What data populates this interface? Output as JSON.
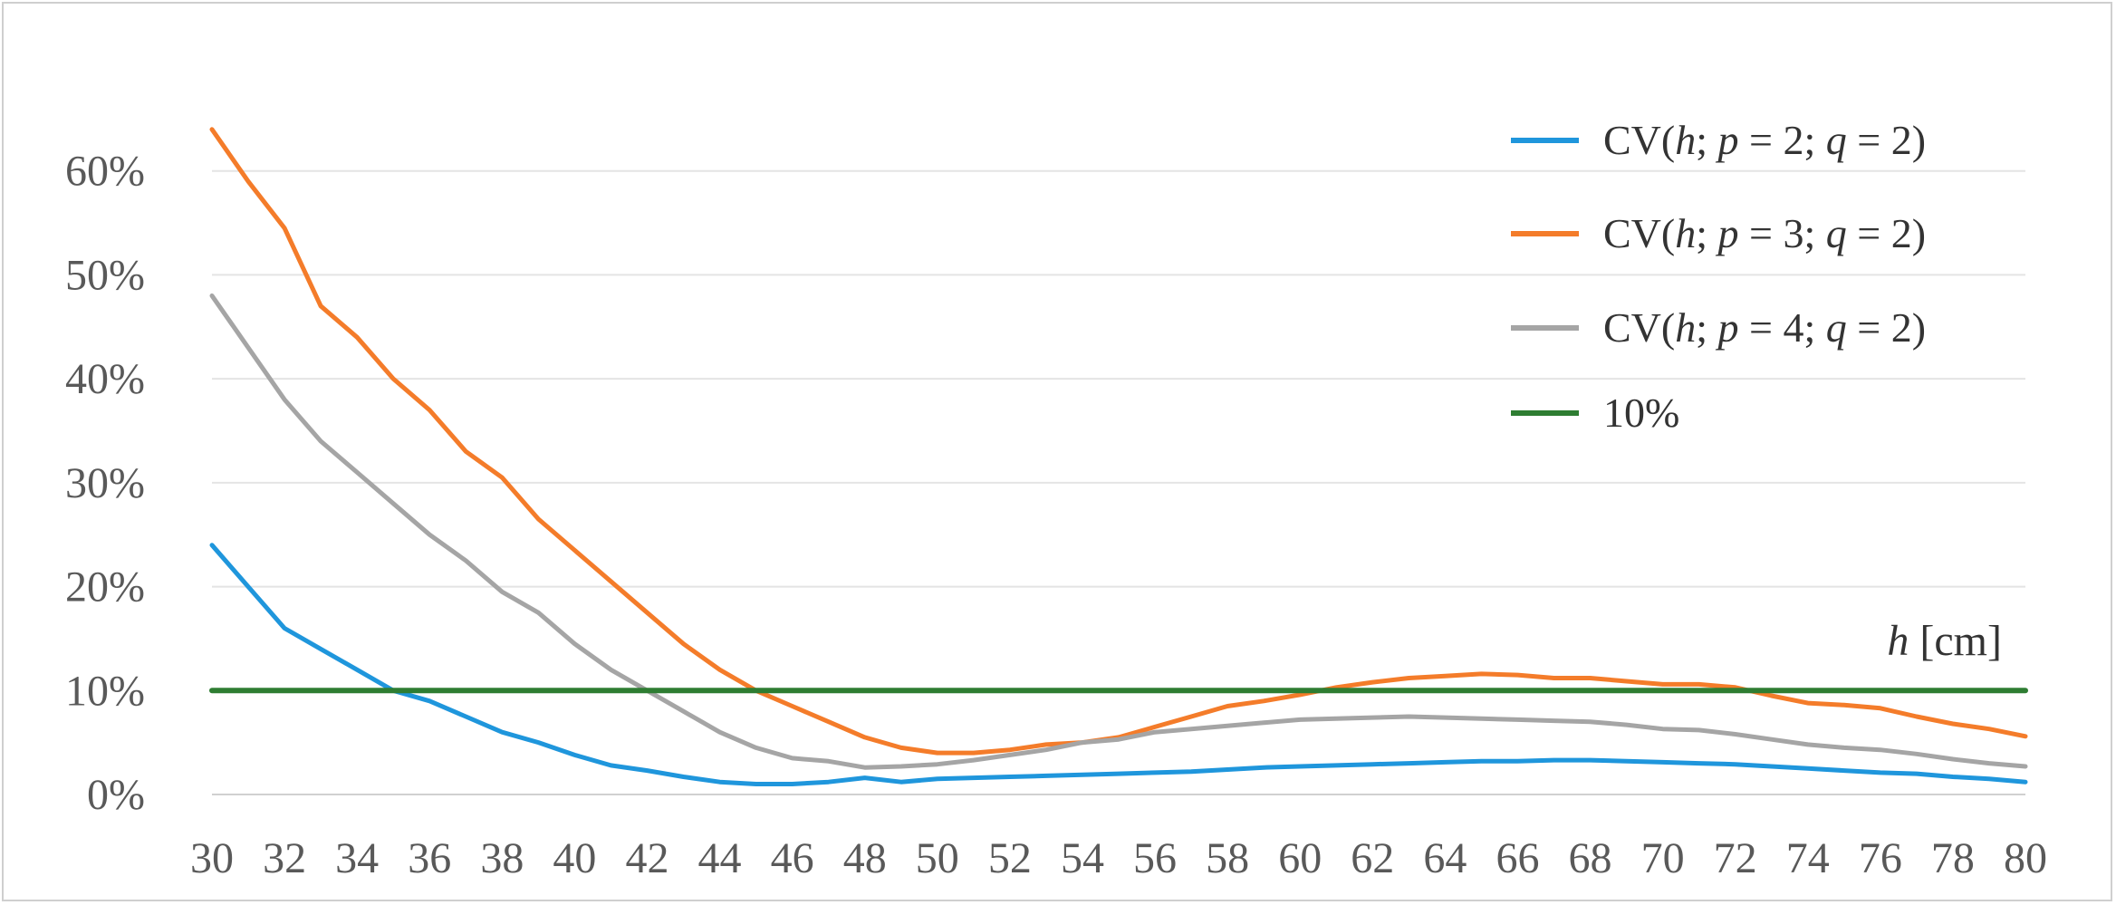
{
  "chart_data": {
    "type": "line",
    "title": "",
    "xlabel_italic": "h",
    "xlabel_unit": " [cm]",
    "ylabel": "",
    "x": [
      30,
      31,
      32,
      33,
      34,
      35,
      36,
      37,
      38,
      39,
      40,
      41,
      42,
      43,
      44,
      45,
      46,
      47,
      48,
      49,
      50,
      51,
      52,
      53,
      54,
      55,
      56,
      57,
      58,
      59,
      60,
      61,
      62,
      63,
      64,
      65,
      66,
      67,
      68,
      69,
      70,
      71,
      72,
      73,
      74,
      75,
      76,
      77,
      78,
      79,
      80
    ],
    "x_tick_labels": [
      "30",
      "32",
      "34",
      "36",
      "38",
      "40",
      "42",
      "44",
      "46",
      "48",
      "50",
      "52",
      "54",
      "56",
      "58",
      "60",
      "62",
      "64",
      "66",
      "68",
      "70",
      "72",
      "74",
      "76",
      "78",
      "80"
    ],
    "y_tick_labels": [
      "0%",
      "10%",
      "20%",
      "30%",
      "40%",
      "50%",
      "60%"
    ],
    "ylim": [
      0,
      0.7
    ],
    "grid": true,
    "legend_position": "top-right",
    "series": [
      {
        "name_parts": [
          "CV(",
          "h",
          "; ",
          "p",
          " = 2; ",
          "q",
          " = 2)"
        ],
        "color": "#1f96dc",
        "values": [
          0.24,
          0.2,
          0.16,
          0.14,
          0.12,
          0.1,
          0.09,
          0.075,
          0.06,
          0.05,
          0.038,
          0.028,
          0.023,
          0.017,
          0.012,
          0.01,
          0.01,
          0.012,
          0.016,
          0.012,
          0.015,
          0.016,
          0.017,
          0.018,
          0.019,
          0.02,
          0.021,
          0.022,
          0.024,
          0.026,
          0.027,
          0.028,
          0.029,
          0.03,
          0.031,
          0.032,
          0.032,
          0.033,
          0.033,
          0.032,
          0.031,
          0.03,
          0.029,
          0.027,
          0.025,
          0.023,
          0.021,
          0.02,
          0.017,
          0.015,
          0.012
        ]
      },
      {
        "name_parts": [
          "CV(",
          "h",
          "; ",
          "p",
          " = 3; ",
          "q",
          " = 2)"
        ],
        "color": "#f47c2a",
        "values": [
          0.64,
          0.59,
          0.545,
          0.47,
          0.44,
          0.4,
          0.37,
          0.33,
          0.305,
          0.265,
          0.235,
          0.205,
          0.175,
          0.145,
          0.12,
          0.1,
          0.085,
          0.07,
          0.055,
          0.045,
          0.04,
          0.04,
          0.043,
          0.048,
          0.05,
          0.055,
          0.065,
          0.075,
          0.085,
          0.09,
          0.096,
          0.103,
          0.108,
          0.112,
          0.114,
          0.116,
          0.115,
          0.112,
          0.112,
          0.109,
          0.106,
          0.106,
          0.103,
          0.095,
          0.088,
          0.086,
          0.083,
          0.075,
          0.068,
          0.063,
          0.056
        ]
      },
      {
        "name_parts": [
          "CV(",
          "h",
          "; ",
          "p",
          " = 4; ",
          "q",
          " = 2)"
        ],
        "color": "#a5a5a5",
        "values": [
          0.48,
          0.43,
          0.38,
          0.34,
          0.31,
          0.28,
          0.25,
          0.225,
          0.195,
          0.175,
          0.145,
          0.12,
          0.1,
          0.08,
          0.06,
          0.045,
          0.035,
          0.032,
          0.026,
          0.027,
          0.029,
          0.033,
          0.038,
          0.043,
          0.05,
          0.053,
          0.06,
          0.063,
          0.066,
          0.069,
          0.072,
          0.073,
          0.074,
          0.075,
          0.074,
          0.073,
          0.072,
          0.071,
          0.07,
          0.067,
          0.063,
          0.062,
          0.058,
          0.053,
          0.048,
          0.045,
          0.043,
          0.039,
          0.034,
          0.03,
          0.027
        ]
      },
      {
        "name_parts": [
          "10%"
        ],
        "color": "#2e7d32",
        "values": [
          0.1,
          0.1,
          0.1,
          0.1,
          0.1,
          0.1,
          0.1,
          0.1,
          0.1,
          0.1,
          0.1,
          0.1,
          0.1,
          0.1,
          0.1,
          0.1,
          0.1,
          0.1,
          0.1,
          0.1,
          0.1,
          0.1,
          0.1,
          0.1,
          0.1,
          0.1,
          0.1,
          0.1,
          0.1,
          0.1,
          0.1,
          0.1,
          0.1,
          0.1,
          0.1,
          0.1,
          0.1,
          0.1,
          0.1,
          0.1,
          0.1,
          0.1,
          0.1,
          0.1,
          0.1,
          0.1,
          0.1,
          0.1,
          0.1,
          0.1,
          0.1
        ]
      }
    ]
  },
  "colors": {
    "grid": "#e4e4e4",
    "axis": "#d0d0d0",
    "tick_text": "#595959"
  }
}
